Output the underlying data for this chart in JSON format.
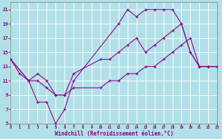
{
  "bg_color": "#b2e0e8",
  "line_color": "#880088",
  "grid_color": "#ffffff",
  "xlim": [
    0,
    23
  ],
  "ylim": [
    5,
    22
  ],
  "xtick_vals": [
    0,
    1,
    2,
    3,
    4,
    5,
    6,
    7,
    8,
    9,
    10,
    11,
    12,
    13,
    14,
    15,
    16,
    17,
    18,
    19,
    20,
    21,
    22,
    23
  ],
  "ytick_vals": [
    5,
    7,
    9,
    11,
    13,
    15,
    17,
    19,
    21
  ],
  "xlabel": "Windchill (Refroidissement éolien,°C)",
  "line1_x": [
    0,
    1,
    2,
    3,
    4,
    5,
    6,
    7,
    12,
    13,
    14,
    15,
    16,
    17,
    18,
    19,
    20,
    21,
    22,
    23
  ],
  "line1_y": [
    14,
    12,
    11,
    8,
    8,
    5,
    7,
    11,
    19,
    21,
    20,
    21,
    21,
    21,
    21,
    19,
    15,
    13,
    13,
    13
  ],
  "line2_x": [
    0,
    2,
    3,
    4,
    5,
    6,
    7,
    10,
    11,
    12,
    13,
    14,
    15,
    16,
    17,
    18,
    19,
    20,
    21,
    22,
    23
  ],
  "line2_y": [
    14,
    11,
    12,
    11,
    9,
    9,
    12,
    14,
    14,
    15,
    16,
    17,
    15,
    16,
    17,
    18,
    19,
    15,
    13,
    13,
    13
  ],
  "line3_x": [
    0,
    2,
    3,
    4,
    5,
    6,
    7,
    10,
    11,
    12,
    13,
    14,
    15,
    16,
    17,
    18,
    19,
    20,
    21,
    22,
    23
  ],
  "line3_y": [
    14,
    11,
    11,
    10,
    9,
    9,
    10,
    10,
    11,
    11,
    12,
    12,
    13,
    13,
    14,
    15,
    16,
    17,
    13,
    13,
    13
  ]
}
